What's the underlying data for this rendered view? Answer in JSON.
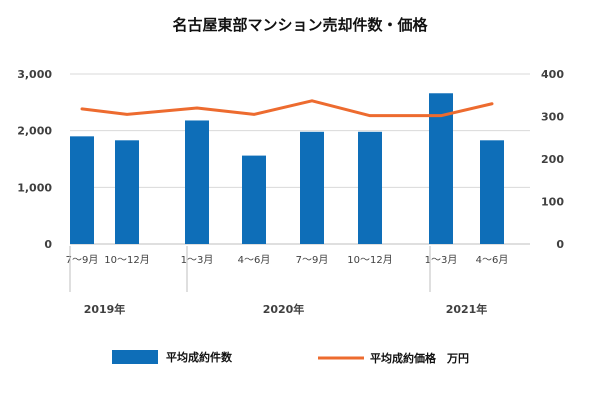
{
  "chart_data": {
    "type": "bar",
    "title": "名古屋東部マンション売却件数・価格",
    "categories": [
      "7～9月",
      "10～12月",
      "1～3月",
      "4～6月",
      "7～9月",
      "10～12月",
      "1～3月",
      "4～6月"
    ],
    "year_groups": [
      {
        "label": "2019年",
        "start": 0,
        "end": 1
      },
      {
        "label": "2020年",
        "start": 2,
        "end": 5
      },
      {
        "label": "2021年",
        "start": 6,
        "end": 7
      }
    ],
    "series": [
      {
        "name": "平均成約件数",
        "type": "bar",
        "axis": "left",
        "color": "#0e6eb8",
        "values": [
          1900,
          1830,
          2180,
          1560,
          1980,
          1980,
          2660,
          1830
        ]
      },
      {
        "name": "平均成約価格　万円",
        "type": "line",
        "axis": "right",
        "color": "#ed6b2f",
        "values": [
          318,
          305,
          320,
          305,
          337,
          302,
          302,
          330
        ]
      }
    ],
    "y_left": {
      "range": [
        0,
        3000
      ],
      "ticks": [
        "0",
        "1,000",
        "2,000",
        "3,000"
      ],
      "tick_values": [
        0,
        1000,
        2000,
        3000
      ]
    },
    "y_right": {
      "range": [
        0,
        400
      ],
      "ticks": [
        "0",
        "100",
        "200",
        "300",
        "400"
      ],
      "tick_values": [
        0,
        100,
        200,
        300,
        400
      ]
    },
    "grid": true,
    "legend_position": "bottom"
  }
}
